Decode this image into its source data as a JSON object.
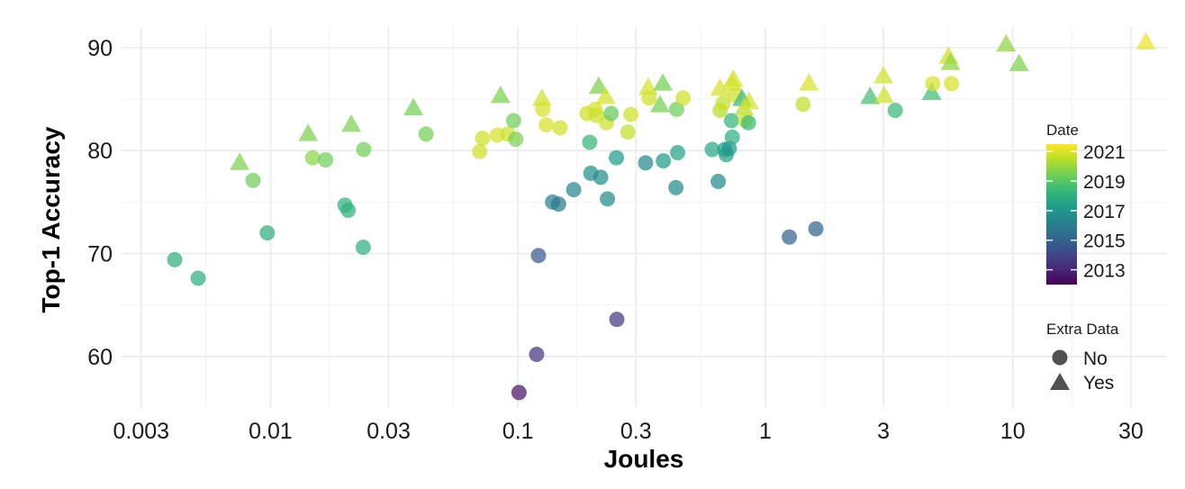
{
  "chart_data": {
    "type": "scatter",
    "title": "",
    "xlabel": "Joules",
    "ylabel": "Top-1 Accuracy",
    "x_scale": "log",
    "xlim": [
      0.0025,
      42
    ],
    "ylim": [
      55,
      92
    ],
    "x_ticks": [
      0.003,
      0.01,
      0.03,
      0.1,
      0.3,
      1,
      3,
      10,
      30
    ],
    "x_tick_labels": [
      "0.003",
      "0.01",
      "0.03",
      "0.1",
      "0.3",
      "1",
      "3",
      "10",
      "30"
    ],
    "y_ticks": [
      60,
      70,
      80,
      90
    ],
    "y_tick_labels": [
      "60",
      "70",
      "80",
      "90"
    ],
    "grid": true,
    "color_legend": {
      "title": "Date",
      "range": [
        2012,
        2021.5
      ],
      "ticks": [
        2021,
        2019,
        2017,
        2015,
        2013
      ],
      "tick_labels": [
        "2021",
        "2019",
        "2017",
        "2015",
        "2013"
      ],
      "colors": [
        "#440154",
        "#482878",
        "#3e4989",
        "#31688e",
        "#26828e",
        "#1f9e89",
        "#35b779",
        "#6ece58",
        "#b5de2b",
        "#fde725"
      ]
    },
    "shape_legend": {
      "title": "Extra Data",
      "entries": [
        {
          "label": "No",
          "shape": "circle"
        },
        {
          "label": "Yes",
          "shape": "triangle"
        }
      ]
    },
    "points": [
      {
        "x": 0.0041,
        "y": 69.4,
        "date": 2018.0,
        "extra": "No"
      },
      {
        "x": 0.0051,
        "y": 67.6,
        "date": 2018.0,
        "extra": "No"
      },
      {
        "x": 0.0085,
        "y": 77.1,
        "date": 2019.4,
        "extra": "No"
      },
      {
        "x": 0.0097,
        "y": 72.0,
        "date": 2018.0,
        "extra": "No"
      },
      {
        "x": 0.0075,
        "y": 78.9,
        "date": 2019.6,
        "extra": "Yes"
      },
      {
        "x": 0.0142,
        "y": 81.7,
        "date": 2019.6,
        "extra": "Yes"
      },
      {
        "x": 0.0148,
        "y": 79.3,
        "date": 2019.8,
        "extra": "No"
      },
      {
        "x": 0.0167,
        "y": 79.1,
        "date": 2019.4,
        "extra": "No"
      },
      {
        "x": 0.02,
        "y": 74.7,
        "date": 2018.1,
        "extra": "No"
      },
      {
        "x": 0.0206,
        "y": 74.2,
        "date": 2018.1,
        "extra": "No"
      },
      {
        "x": 0.0212,
        "y": 82.6,
        "date": 2019.6,
        "extra": "Yes"
      },
      {
        "x": 0.0238,
        "y": 80.1,
        "date": 2019.4,
        "extra": "No"
      },
      {
        "x": 0.0237,
        "y": 70.6,
        "date": 2018.0,
        "extra": "No"
      },
      {
        "x": 0.0378,
        "y": 84.2,
        "date": 2019.5,
        "extra": "Yes"
      },
      {
        "x": 0.0425,
        "y": 81.6,
        "date": 2019.5,
        "extra": "No"
      },
      {
        "x": 0.07,
        "y": 79.9,
        "date": 2020.8,
        "extra": "No"
      },
      {
        "x": 0.072,
        "y": 81.2,
        "date": 2020.8,
        "extra": "No"
      },
      {
        "x": 0.0825,
        "y": 81.5,
        "date": 2020.9,
        "extra": "No"
      },
      {
        "x": 0.085,
        "y": 85.4,
        "date": 2019.6,
        "extra": "Yes"
      },
      {
        "x": 0.091,
        "y": 81.6,
        "date": 2020.8,
        "extra": "No"
      },
      {
        "x": 0.096,
        "y": 82.9,
        "date": 2019.4,
        "extra": "No"
      },
      {
        "x": 0.098,
        "y": 81.1,
        "date": 2019.6,
        "extra": "No"
      },
      {
        "x": 0.101,
        "y": 56.5,
        "date": 2012.5,
        "extra": "No"
      },
      {
        "x": 0.119,
        "y": 60.2,
        "date": 2013.5,
        "extra": "No"
      },
      {
        "x": 0.121,
        "y": 69.8,
        "date": 2014.7,
        "extra": "No"
      },
      {
        "x": 0.125,
        "y": 85.1,
        "date": 2020.8,
        "extra": "Yes"
      },
      {
        "x": 0.126,
        "y": 84.0,
        "date": 2020.9,
        "extra": "No"
      },
      {
        "x": 0.13,
        "y": 82.5,
        "date": 2020.9,
        "extra": "No"
      },
      {
        "x": 0.138,
        "y": 75.0,
        "date": 2016.3,
        "extra": "No"
      },
      {
        "x": 0.146,
        "y": 74.8,
        "date": 2015.8,
        "extra": "No"
      },
      {
        "x": 0.148,
        "y": 82.2,
        "date": 2020.8,
        "extra": "No"
      },
      {
        "x": 0.168,
        "y": 76.2,
        "date": 2016.4,
        "extra": "No"
      },
      {
        "x": 0.19,
        "y": 83.6,
        "date": 2020.8,
        "extra": "No"
      },
      {
        "x": 0.195,
        "y": 80.8,
        "date": 2018.3,
        "extra": "No"
      },
      {
        "x": 0.197,
        "y": 77.8,
        "date": 2016.7,
        "extra": "No"
      },
      {
        "x": 0.205,
        "y": 84.0,
        "date": 2020.9,
        "extra": "No"
      },
      {
        "x": 0.208,
        "y": 83.4,
        "date": 2020.8,
        "extra": "No"
      },
      {
        "x": 0.212,
        "y": 86.3,
        "date": 2019.6,
        "extra": "Yes"
      },
      {
        "x": 0.216,
        "y": 77.4,
        "date": 2016.7,
        "extra": "No"
      },
      {
        "x": 0.226,
        "y": 85.3,
        "date": 2020.9,
        "extra": "Yes"
      },
      {
        "x": 0.228,
        "y": 82.7,
        "date": 2020.8,
        "extra": "No"
      },
      {
        "x": 0.23,
        "y": 75.3,
        "date": 2016.6,
        "extra": "No"
      },
      {
        "x": 0.238,
        "y": 83.6,
        "date": 2019.2,
        "extra": "No"
      },
      {
        "x": 0.25,
        "y": 79.3,
        "date": 2017.2,
        "extra": "No"
      },
      {
        "x": 0.251,
        "y": 63.6,
        "date": 2013.6,
        "extra": "No"
      },
      {
        "x": 0.278,
        "y": 81.8,
        "date": 2020.6,
        "extra": "No"
      },
      {
        "x": 0.286,
        "y": 83.5,
        "date": 2020.8,
        "extra": "No"
      },
      {
        "x": 0.328,
        "y": 78.8,
        "date": 2016.6,
        "extra": "No"
      },
      {
        "x": 0.336,
        "y": 86.2,
        "date": 2020.9,
        "extra": "Yes"
      },
      {
        "x": 0.339,
        "y": 85.1,
        "date": 2020.8,
        "extra": "No"
      },
      {
        "x": 0.375,
        "y": 84.5,
        "date": 2019.5,
        "extra": "Yes"
      },
      {
        "x": 0.385,
        "y": 86.6,
        "date": 2019.5,
        "extra": "Yes"
      },
      {
        "x": 0.387,
        "y": 79.0,
        "date": 2017.2,
        "extra": "No"
      },
      {
        "x": 0.435,
        "y": 76.4,
        "date": 2016.6,
        "extra": "No"
      },
      {
        "x": 0.438,
        "y": 84.0,
        "date": 2019.4,
        "extra": "No"
      },
      {
        "x": 0.442,
        "y": 79.8,
        "date": 2017.5,
        "extra": "No"
      },
      {
        "x": 0.465,
        "y": 85.1,
        "date": 2020.8,
        "extra": "No"
      },
      {
        "x": 0.61,
        "y": 80.1,
        "date": 2017.7,
        "extra": "No"
      },
      {
        "x": 0.645,
        "y": 77.0,
        "date": 2016.6,
        "extra": "No"
      },
      {
        "x": 0.655,
        "y": 86.1,
        "date": 2020.9,
        "extra": "Yes"
      },
      {
        "x": 0.656,
        "y": 83.9,
        "date": 2020.5,
        "extra": "No"
      },
      {
        "x": 0.675,
        "y": 84.6,
        "date": 2020.7,
        "extra": "No"
      },
      {
        "x": 0.685,
        "y": 80.1,
        "date": 2017.3,
        "extra": "No"
      },
      {
        "x": 0.695,
        "y": 79.6,
        "date": 2017.4,
        "extra": "No"
      },
      {
        "x": 0.715,
        "y": 80.2,
        "date": 2017.1,
        "extra": "No"
      },
      {
        "x": 0.73,
        "y": 82.9,
        "date": 2018.3,
        "extra": "No"
      },
      {
        "x": 0.735,
        "y": 81.3,
        "date": 2018.0,
        "extra": "No"
      },
      {
        "x": 0.735,
        "y": 86.6,
        "date": 2020.9,
        "extra": "Yes"
      },
      {
        "x": 0.742,
        "y": 87.0,
        "date": 2020.9,
        "extra": "Yes"
      },
      {
        "x": 0.752,
        "y": 85.4,
        "date": 2020.8,
        "extra": "No"
      },
      {
        "x": 0.805,
        "y": 85.1,
        "date": 2018.4,
        "extra": "Yes"
      },
      {
        "x": 0.82,
        "y": 84.2,
        "date": 2020.5,
        "extra": "Yes"
      },
      {
        "x": 0.83,
        "y": 82.9,
        "date": 2020.8,
        "extra": "No"
      },
      {
        "x": 0.855,
        "y": 82.7,
        "date": 2018.4,
        "extra": "No"
      },
      {
        "x": 0.86,
        "y": 84.8,
        "date": 2020.9,
        "extra": "Yes"
      },
      {
        "x": 1.25,
        "y": 71.6,
        "date": 2015.0,
        "extra": "No"
      },
      {
        "x": 1.42,
        "y": 84.5,
        "date": 2020.6,
        "extra": "No"
      },
      {
        "x": 1.5,
        "y": 86.6,
        "date": 2020.9,
        "extra": "Yes"
      },
      {
        "x": 1.6,
        "y": 72.4,
        "date": 2015.0,
        "extra": "No"
      },
      {
        "x": 2.65,
        "y": 85.3,
        "date": 2018.6,
        "extra": "Yes"
      },
      {
        "x": 3.0,
        "y": 87.3,
        "date": 2020.8,
        "extra": "Yes"
      },
      {
        "x": 3.02,
        "y": 85.4,
        "date": 2020.8,
        "extra": "Yes"
      },
      {
        "x": 3.35,
        "y": 83.9,
        "date": 2018.4,
        "extra": "No"
      },
      {
        "x": 4.7,
        "y": 85.7,
        "date": 2018.6,
        "extra": "Yes"
      },
      {
        "x": 4.75,
        "y": 86.5,
        "date": 2020.9,
        "extra": "No"
      },
      {
        "x": 5.5,
        "y": 89.2,
        "date": 2020.8,
        "extra": "Yes"
      },
      {
        "x": 5.6,
        "y": 88.6,
        "date": 2019.9,
        "extra": "Yes"
      },
      {
        "x": 5.65,
        "y": 86.5,
        "date": 2020.9,
        "extra": "No"
      },
      {
        "x": 9.4,
        "y": 90.4,
        "date": 2019.9,
        "extra": "Yes"
      },
      {
        "x": 10.6,
        "y": 88.5,
        "date": 2019.6,
        "extra": "Yes"
      },
      {
        "x": 34.5,
        "y": 90.6,
        "date": 2021.2,
        "extra": "Yes"
      }
    ]
  }
}
